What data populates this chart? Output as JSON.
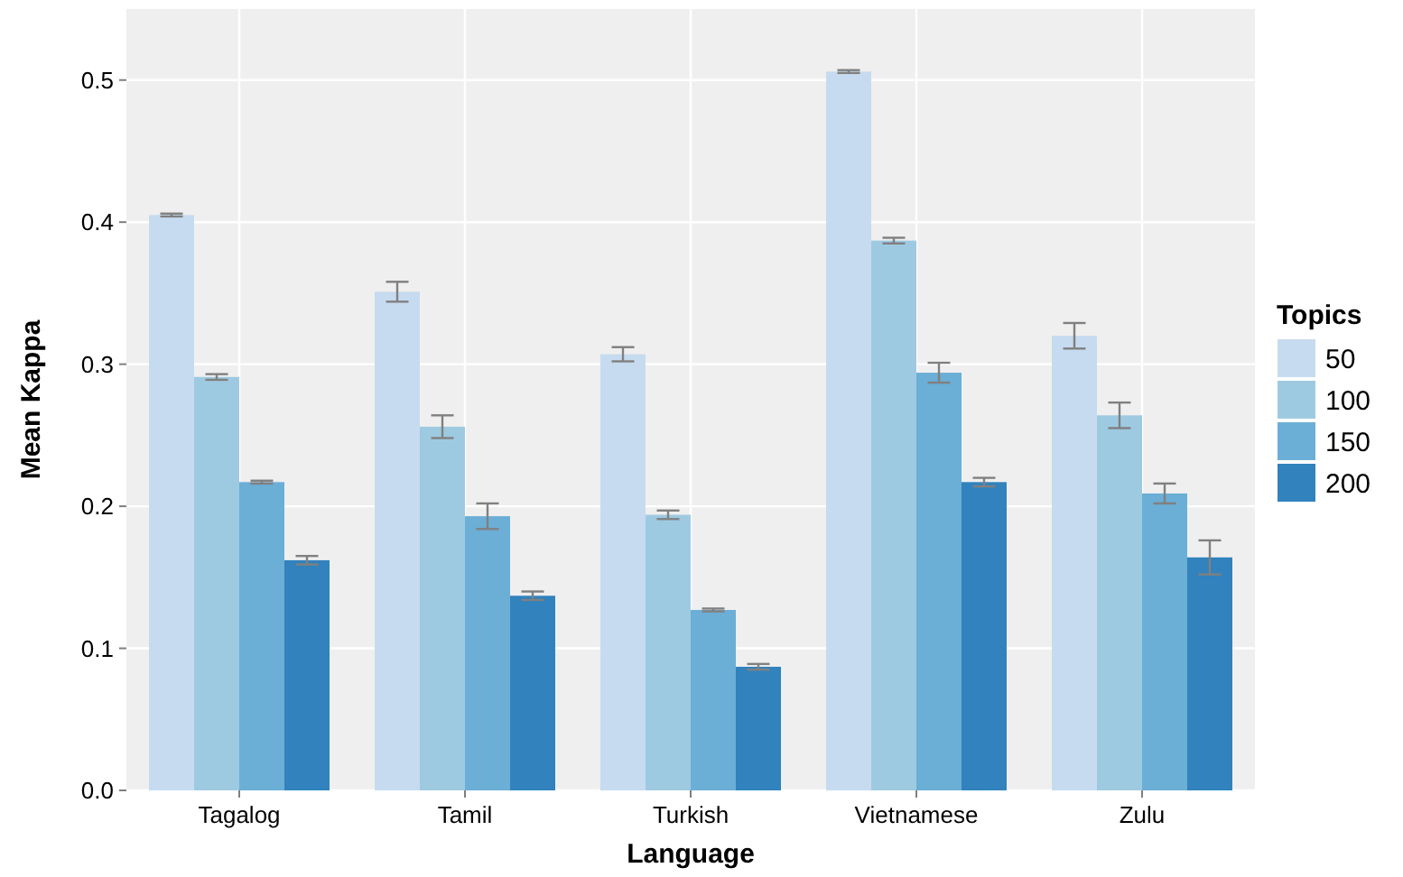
{
  "chart_data": {
    "type": "bar",
    "xlabel": "Language",
    "ylabel": "Mean Kappa",
    "legend_title": "Topics",
    "categories": [
      "Tagalog",
      "Tamil",
      "Turkish",
      "Vietnamese",
      "Zulu"
    ],
    "series": [
      {
        "name": "50",
        "color": "#c6dbef",
        "values": [
          0.405,
          0.351,
          0.307,
          0.506,
          0.32
        ],
        "errors": [
          0.001,
          0.007,
          0.005,
          0.001,
          0.009
        ]
      },
      {
        "name": "100",
        "color": "#9ecae1",
        "values": [
          0.291,
          0.256,
          0.194,
          0.387,
          0.264
        ],
        "errors": [
          0.002,
          0.008,
          0.003,
          0.002,
          0.009
        ]
      },
      {
        "name": "150",
        "color": "#6baed6",
        "values": [
          0.217,
          0.193,
          0.127,
          0.294,
          0.209
        ],
        "errors": [
          0.001,
          0.009,
          0.001,
          0.007,
          0.007
        ]
      },
      {
        "name": "200",
        "color": "#3182bd",
        "values": [
          0.162,
          0.137,
          0.087,
          0.217,
          0.164
        ],
        "errors": [
          0.003,
          0.003,
          0.002,
          0.003,
          0.012
        ]
      }
    ],
    "ylim": [
      0,
      0.55
    ],
    "yticks": [
      {
        "value": 0,
        "label": "0.0"
      },
      0.1,
      0.2,
      0.3,
      0.4,
      0.5
    ],
    "grid": true,
    "legend": "right"
  }
}
